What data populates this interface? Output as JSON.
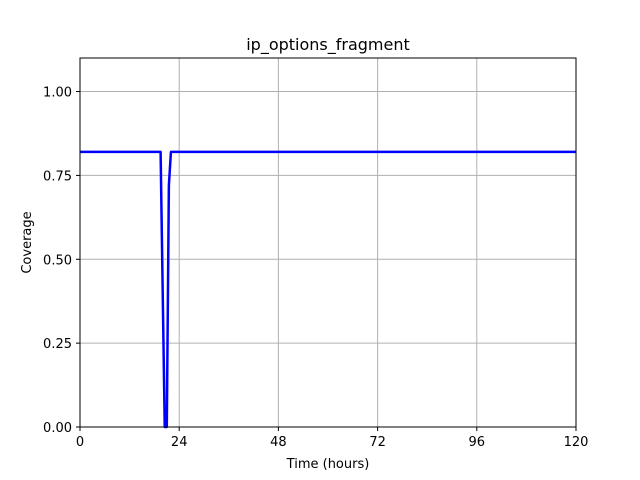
{
  "chart_data": {
    "type": "line",
    "title": "ip_options_fragment",
    "xlabel": "Time (hours)",
    "ylabel": "Coverage",
    "xlim": [
      0,
      120
    ],
    "ylim": [
      0,
      1.1
    ],
    "xticks": [
      0,
      24,
      48,
      72,
      96,
      120
    ],
    "xtick_labels": [
      "0",
      "24",
      "48",
      "72",
      "96",
      "120"
    ],
    "yticks": [
      0,
      0.25,
      0.5,
      0.75,
      1.0
    ],
    "ytick_labels": [
      "0.00",
      "0.25",
      "0.50",
      "0.75",
      "1.00"
    ],
    "grid": true,
    "series": [
      {
        "color": "#0000ff",
        "x": [
          0,
          19.5,
          20.5,
          21.0,
          21.5,
          22.0,
          120
        ],
        "y": [
          0.82,
          0.82,
          0.0,
          0.0,
          0.72,
          0.82,
          0.82
        ]
      }
    ]
  }
}
